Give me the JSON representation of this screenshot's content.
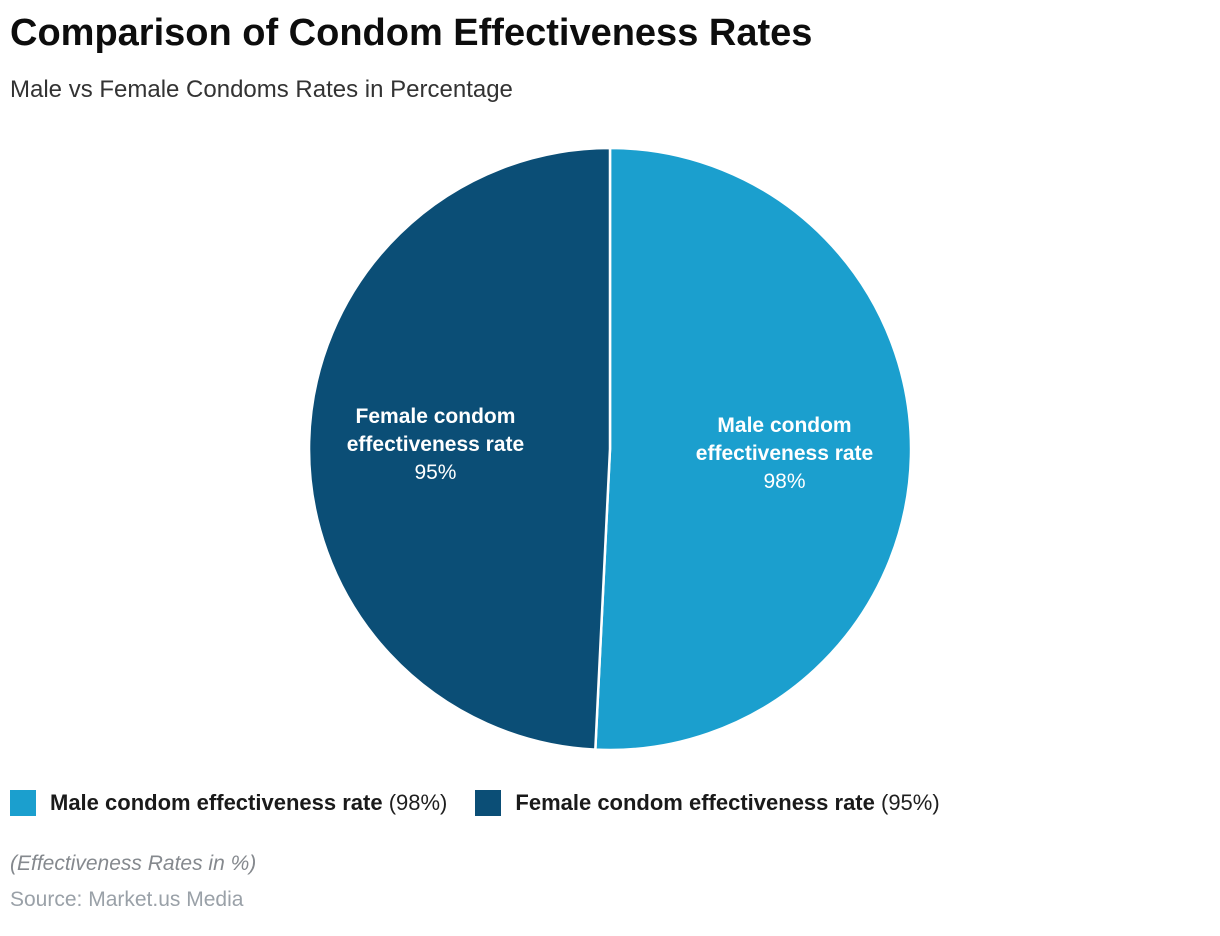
{
  "header": {
    "title": "Comparison of Condom Effectiveness Rates",
    "subtitle": "Male vs Female Condoms Rates in Percentage"
  },
  "chart_data": {
    "type": "pie",
    "title": "Comparison of Condom Effectiveness Rates",
    "subtitle": "Male vs Female Condoms Rates in Percentage",
    "unit": "%",
    "categories": [
      "Male condom effectiveness rate",
      "Female condom effectiveness rate"
    ],
    "values": [
      98,
      95
    ],
    "colors": [
      "#1b9fce",
      "#0b4e76"
    ],
    "start_angle": "12-oclock",
    "direction": "clockwise",
    "slice_stroke_color": "#ffffff",
    "legend_position": "bottom-left",
    "slice_labels": [
      {
        "line1": "Male condom",
        "line2": "effectiveness rate",
        "value": "98%"
      },
      {
        "line1": "Female condom",
        "line2": "effectiveness rate",
        "value": "95%"
      }
    ],
    "legend": [
      {
        "label": "Male condom effectiveness rate",
        "value": "(98%)",
        "color": "#1b9fce"
      },
      {
        "label": "Female condom effectiveness rate",
        "value": "(95%)",
        "color": "#0b4e76"
      }
    ]
  },
  "footer": {
    "note": "(Effectiveness Rates in %)",
    "source": "Source: Market.us Media"
  }
}
